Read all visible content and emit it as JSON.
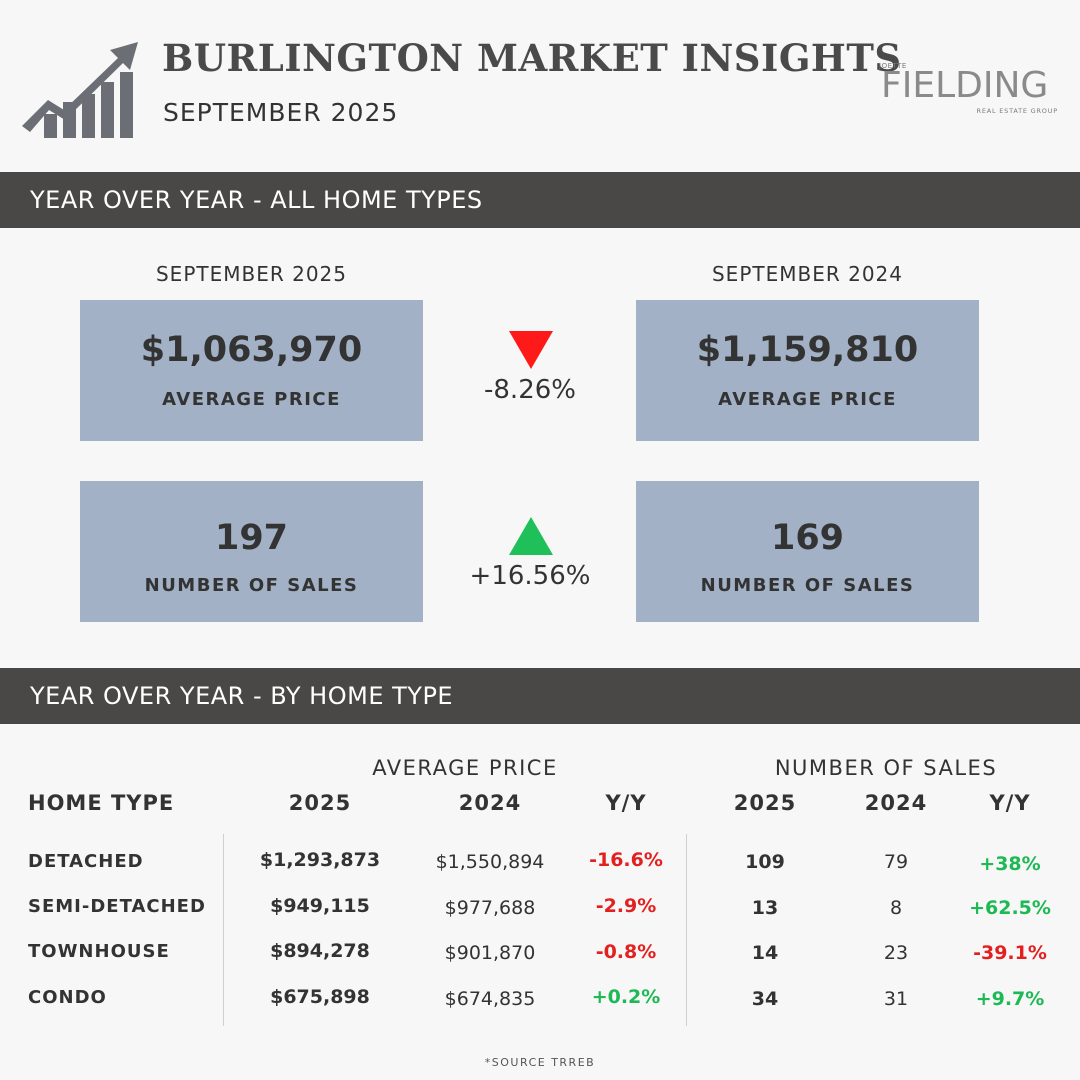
{
  "header": {
    "title": "BURLINGTON MARKET INSIGHTS",
    "subtitle": "SEPTEMBER 2025",
    "brand": {
      "small": "JOETTE",
      "name": "FIELDING",
      "tagline": "REAL ESTATE GROUP"
    },
    "logo_icon": "growth-chart-arrow-icon"
  },
  "section_all": {
    "title": "YEAR OVER YEAR - ALL HOME TYPES",
    "current_label": "SEPTEMBER 2025",
    "previous_label": "SEPTEMBER 2024",
    "price": {
      "current": "$1,063,970",
      "previous": "$1,159,810",
      "label": "AVERAGE PRICE",
      "change": "-8.26%",
      "direction": "down"
    },
    "sales": {
      "current": "197",
      "previous": "169",
      "label": "NUMBER OF SALES",
      "change": "+16.56%",
      "direction": "up"
    }
  },
  "section_type": {
    "title": "YEAR OVER YEAR - BY HOME TYPE",
    "group_price": "AVERAGE PRICE",
    "group_sales": "NUMBER OF SALES",
    "columns": [
      "HOME TYPE",
      "2025",
      "2024",
      "Y/Y",
      "2025",
      "2024",
      "Y/Y"
    ],
    "rows": [
      [
        "DETACHED",
        "$1,293,873",
        "$1,550,894",
        "-16.6%",
        "109",
        "79",
        "+38%"
      ],
      [
        "SEMI-DETACHED",
        "$949,115",
        "$977,688",
        "-2.9%",
        "13",
        "8",
        "+62.5%"
      ],
      [
        "TOWNHOUSE",
        "$894,278",
        "$901,870",
        "-0.8%",
        "14",
        "23",
        "-39.1%"
      ],
      [
        "CONDO",
        "$675,898",
        "$674,835",
        "+0.2%",
        "34",
        "31",
        "+9.7%"
      ]
    ]
  },
  "footer": {
    "source": "*SOURCE TRREB"
  },
  "colors": {
    "bar": "#494847",
    "card": "#a2b1c5",
    "positive": "#1db954",
    "negative": "#e32020",
    "arrow_up": "#1fbf5a",
    "arrow_down": "#ff1a1a"
  }
}
